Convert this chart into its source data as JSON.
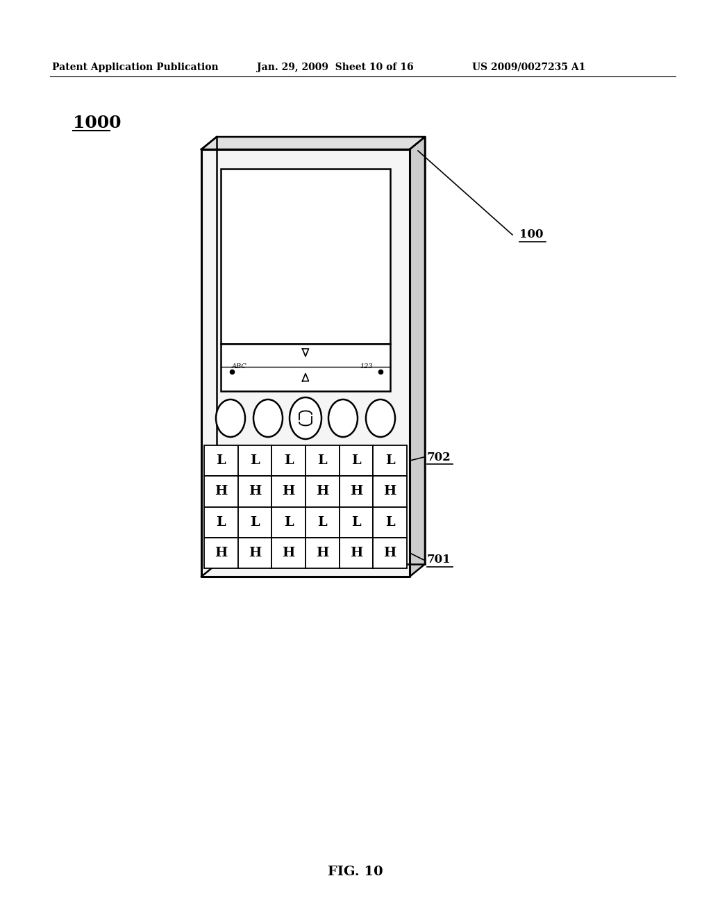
{
  "bg_color": "#ffffff",
  "title_header": "Patent Application Publication",
  "header_date": "Jan. 29, 2009  Sheet 10 of 16",
  "header_patent": "US 2009/0027235 A1",
  "fig_label": "FIG. 10",
  "device_label": "1000",
  "ref_100": "100",
  "ref_701": "701",
  "ref_702": "702",
  "keyboard_rows": [
    [
      "L",
      "L",
      "L",
      "L",
      "L",
      "L"
    ],
    [
      "H",
      "H",
      "H",
      "H",
      "H",
      "H"
    ],
    [
      "L",
      "L",
      "L",
      "L",
      "L",
      "L"
    ],
    [
      "H",
      "H",
      "H",
      "H",
      "H",
      "H"
    ]
  ]
}
